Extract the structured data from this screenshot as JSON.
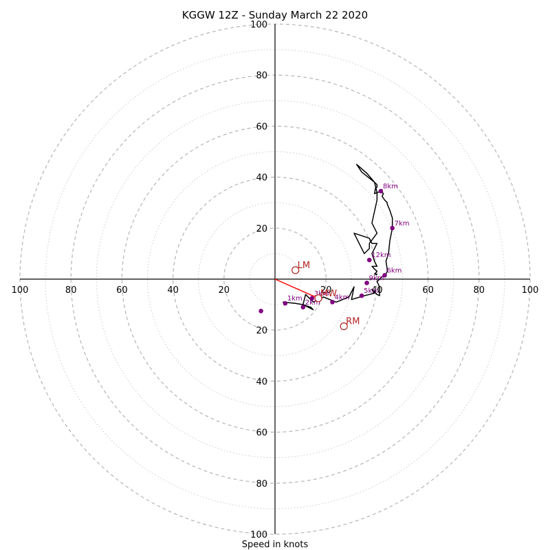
{
  "chart_data": {
    "type": "hodograph",
    "title": "KGGW 12Z - Sunday March 22 2020",
    "xlabel": "Speed in knots",
    "x_range": [
      -100,
      100
    ],
    "y_range": [
      -100,
      100
    ],
    "ring_spacing_major": 20,
    "ring_spacing_minor": 10,
    "axis_tick_labels": [
      "100",
      "80",
      "60",
      "40",
      "20"
    ],
    "colors": {
      "trace": "#000000",
      "height_marker": "#800080",
      "storm_motion": "#b22222",
      "mean_wind_line": "#ff0000",
      "major_ring": "#b4b4b4",
      "minor_ring": "#c8c8c8"
    },
    "trace": [
      [
        3,
        -9
      ],
      [
        8,
        -9.5
      ],
      [
        11,
        -10
      ],
      [
        14,
        -11
      ],
      [
        15,
        -12
      ],
      [
        13,
        -11
      ],
      [
        11,
        -10
      ],
      [
        12,
        -6
      ],
      [
        15,
        -9
      ],
      [
        17,
        -8
      ],
      [
        19,
        -7
      ],
      [
        24,
        -9
      ],
      [
        29,
        -7
      ],
      [
        31,
        -3
      ],
      [
        30,
        -8
      ],
      [
        35,
        -6.5
      ],
      [
        37,
        -6
      ],
      [
        39,
        -5.5
      ],
      [
        38,
        -4
      ],
      [
        40,
        -6
      ],
      [
        41,
        -6.5
      ],
      [
        41,
        -3
      ],
      [
        40,
        -1
      ],
      [
        42,
        1
      ],
      [
        43,
        1
      ],
      [
        44,
        3
      ],
      [
        44,
        4
      ],
      [
        43.5,
        7
      ],
      [
        44.5,
        10
      ],
      [
        45,
        15
      ],
      [
        46,
        20
      ],
      [
        46,
        24
      ],
      [
        45,
        27
      ],
      [
        44,
        29.5
      ],
      [
        44,
        30
      ],
      [
        43,
        31
      ],
      [
        42,
        32.5
      ],
      [
        42.5,
        33.5
      ],
      [
        41.5,
        34.5
      ],
      [
        39,
        33.5
      ],
      [
        39.5,
        36
      ],
      [
        39,
        38
      ],
      [
        36,
        41.5
      ],
      [
        32,
        45
      ],
      [
        34,
        42
      ],
      [
        39,
        38
      ],
      [
        40,
        37
      ],
      [
        40,
        36
      ],
      [
        39.5,
        36
      ],
      [
        40,
        34
      ],
      [
        40,
        31
      ],
      [
        38,
        22
      ],
      [
        40,
        18
      ],
      [
        37,
        14
      ],
      [
        37,
        12
      ],
      [
        35,
        10
      ],
      [
        31,
        18
      ],
      [
        37,
        16
      ],
      [
        38,
        14
      ],
      [
        40,
        14
      ],
      [
        38,
        10
      ],
      [
        39,
        7
      ],
      [
        39.5,
        6
      ],
      [
        40,
        5
      ],
      [
        38,
        5
      ],
      [
        39,
        4
      ],
      [
        40,
        3
      ],
      [
        39,
        2
      ],
      [
        40,
        2
      ],
      [
        39.5,
        1.5
      ]
    ],
    "height_markers": [
      {
        "label": "1km",
        "u": 4,
        "v": -9.5
      },
      {
        "label": "2km",
        "u": 11,
        "v": -11
      },
      {
        "label": "3km",
        "u": 14.5,
        "v": -7.5
      },
      {
        "label": "4km",
        "u": 22.5,
        "v": -9
      },
      {
        "label": "5km",
        "u": 34,
        "v": -6.5
      },
      {
        "label": "6km",
        "u": 43,
        "v": 1.5
      },
      {
        "label": "7km",
        "u": 46,
        "v": 20
      },
      {
        "label": "8km",
        "u": 41.5,
        "v": 34.5
      },
      {
        "label": "9km",
        "u": 36,
        "v": -1.5
      },
      {
        "label": "12km",
        "u": 37,
        "v": 7.5
      },
      {
        "label": "",
        "u": -5.5,
        "v": -12.5
      }
    ],
    "storm_motion": [
      {
        "label": "LM",
        "u": 8,
        "v": 3.5
      },
      {
        "label": "RM",
        "u": 27,
        "v": -18.5
      },
      {
        "label": "MW",
        "u": 17,
        "v": -7.5
      }
    ],
    "mean_wind_vector": {
      "u": 17,
      "v": -7.5
    }
  }
}
